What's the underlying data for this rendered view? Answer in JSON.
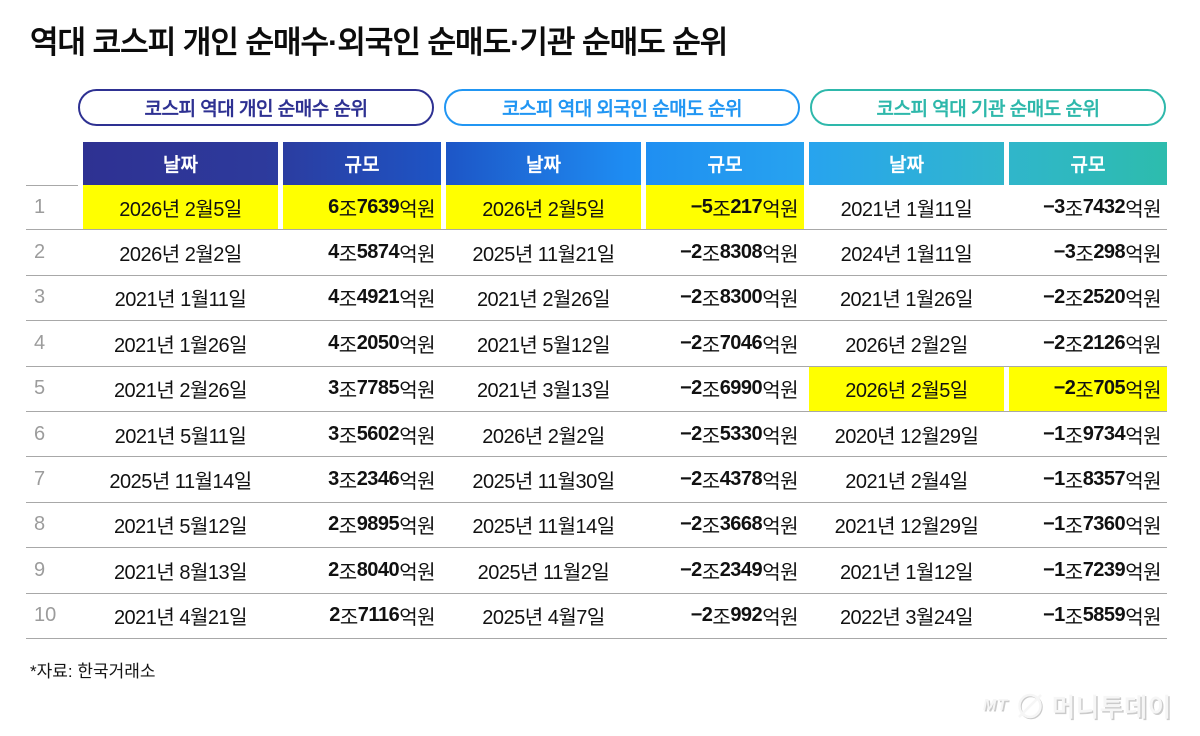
{
  "title": "역대 코스피 개인 순매수·외국인 순매도·기관 순매도 순위",
  "source_note": "*자료: 한국거래소",
  "logo": {
    "mt": "MT",
    "name": "머니투데이"
  },
  "ranks": [
    "1",
    "2",
    "3",
    "4",
    "5",
    "6",
    "7",
    "8",
    "9",
    "10"
  ],
  "colors": {
    "highlight": "#ffff00",
    "row_line": "#a8a8a8",
    "rank_text": "#9c9c9c",
    "header_gradient": [
      "#2e3192",
      "#2d3a9c",
      "#1d55c6",
      "#1e8cf2",
      "#27a3ef",
      "#30b5cf",
      "#2dbcad"
    ]
  },
  "sections": [
    {
      "pill_label": "코스피 역대 개인 순매수 순위",
      "accent": "#2e3192"
    },
    {
      "pill_label": "코스피 역대 외국인 순매도 순위",
      "accent": "#2196f3"
    },
    {
      "pill_label": "코스피 역대 기관 순매도 순위",
      "accent": "#2eb8ab"
    }
  ],
  "chart_data": [
    {
      "type": "table",
      "title": "코스피 역대 개인 순매수 순위",
      "columns": [
        "날짜",
        "규모"
      ],
      "highlight_rank": 1,
      "rows": [
        [
          "2026년 2월5일",
          "6조7639억원"
        ],
        [
          "2026년 2월2일",
          "4조5874억원"
        ],
        [
          "2021년 1월11일",
          "4조4921억원"
        ],
        [
          "2021년 1월26일",
          "4조2050억원"
        ],
        [
          "2021년 2월26일",
          "3조7785억원"
        ],
        [
          "2021년 5월11일",
          "3조5602억원"
        ],
        [
          "2025년 11월14일",
          "3조2346억원"
        ],
        [
          "2021년 5월12일",
          "2조9895억원"
        ],
        [
          "2021년 8월13일",
          "2조8040억원"
        ],
        [
          "2021년 4월21일",
          "2조7116억원"
        ]
      ]
    },
    {
      "type": "table",
      "title": "코스피 역대 외국인 순매도 순위",
      "columns": [
        "날짜",
        "규모"
      ],
      "highlight_rank": 1,
      "rows": [
        [
          "2026년 2월5일",
          "-5조217억원"
        ],
        [
          "2025년 11월21일",
          "-2조8308억원"
        ],
        [
          "2021년 2월26일",
          "-2조8300억원"
        ],
        [
          "2021년 5월12일",
          "-2조7046억원"
        ],
        [
          "2021년 3월13일",
          "-2조6990억원"
        ],
        [
          "2026년 2월2일",
          "-2조5330억원"
        ],
        [
          "2025년 11월30일",
          "-2조4378억원"
        ],
        [
          "2025년 11월14일",
          "-2조3668억원"
        ],
        [
          "2025년 11월2일",
          "-2조2349억원"
        ],
        [
          "2025년 4월7일",
          "-2조992억원"
        ]
      ]
    },
    {
      "type": "table",
      "title": "코스피 역대 기관 순매도 순위",
      "columns": [
        "날짜",
        "규모"
      ],
      "highlight_rank": 5,
      "rows": [
        [
          "2021년 1월11일",
          "-3조7432억원"
        ],
        [
          "2024년 1월11일",
          "-3조298억원"
        ],
        [
          "2021년 1월26일",
          "-2조2520억원"
        ],
        [
          "2026년 2월2일",
          "-2조2126억원"
        ],
        [
          "2026년 2월5일",
          "-2조705억원"
        ],
        [
          "2020년 12월29일",
          "-1조9734억원"
        ],
        [
          "2021년 2월4일",
          "-1조8357억원"
        ],
        [
          "2021년 12월29일",
          "-1조7360억원"
        ],
        [
          "2021년 1월12일",
          "-1조7239억원"
        ],
        [
          "2022년 3월24일",
          "-1조5859억원"
        ]
      ]
    }
  ]
}
